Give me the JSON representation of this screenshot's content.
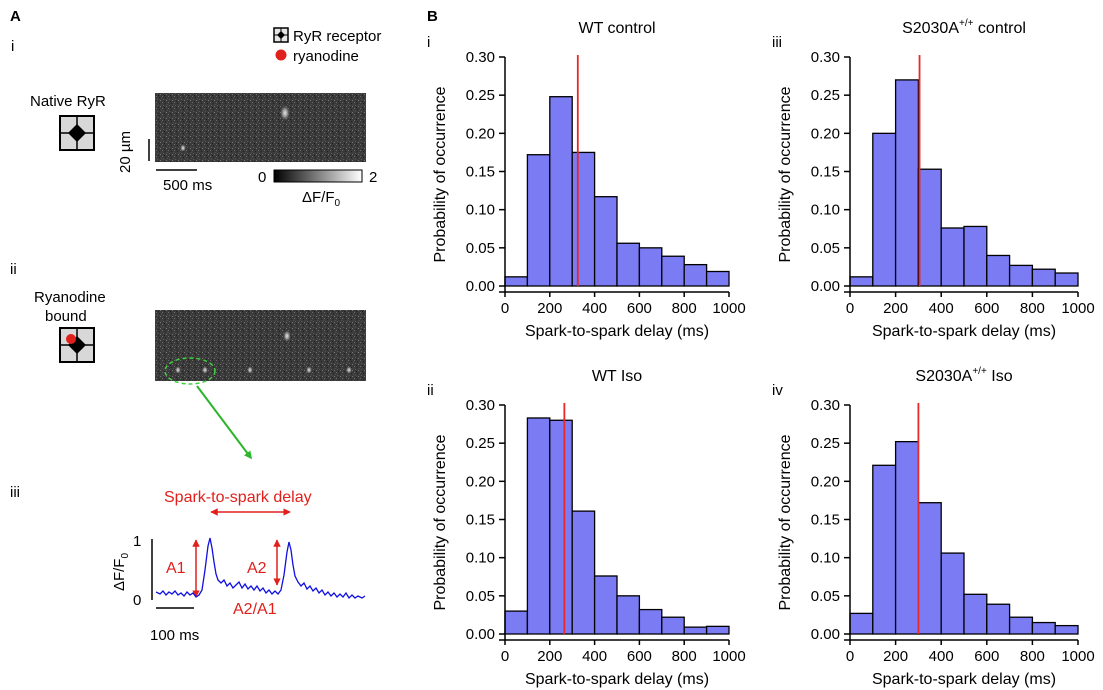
{
  "panel_a": {
    "letter": "A",
    "sub_i": "i",
    "sub_ii": "ii",
    "sub_iii": "iii",
    "legend": {
      "receptor": "RyR receptor",
      "ryanodine": "ryanodine"
    },
    "native_label": "Native RyR",
    "bound_label_1": "Ryanodine",
    "bound_label_2": "bound",
    "scale_um": "20 µm",
    "scale_ms": "500 ms",
    "colorbar": {
      "min": "0",
      "max": "2",
      "label": "ΔF/F",
      "label_sub": "0"
    },
    "trace": {
      "delay_label": "Spark-to-spark delay",
      "a1": "A1",
      "a2": "A2",
      "ratio": "A2/A1",
      "y_top": "1",
      "y_bottom": "0",
      "ylabel": "ΔF/F",
      "ylabel_sub": "0",
      "scale_ms": "100 ms"
    },
    "colors": {
      "trace": "#1010e0",
      "annotation": "#e0201b",
      "arrow": "#2db52d",
      "highlight": "#3fd13f"
    }
  },
  "panel_b": {
    "letter": "B"
  },
  "chart_data": [
    {
      "id": "i",
      "type": "bar",
      "title": "WT control",
      "title_sup": "",
      "title_suffix": "",
      "xlabel": "Spark-to-spark delay (ms)",
      "ylabel": "Probability of occurrence",
      "bin_edges": [
        0,
        100,
        200,
        300,
        400,
        500,
        600,
        700,
        800,
        900,
        1000
      ],
      "values": [
        0.012,
        0.172,
        0.248,
        0.175,
        0.117,
        0.056,
        0.05,
        0.039,
        0.028,
        0.019
      ],
      "mean_line": 325,
      "xlim": [
        0,
        1000
      ],
      "ylim": [
        0,
        0.3
      ],
      "xticks": [
        "0",
        "200",
        "400",
        "600",
        "800",
        "1000"
      ],
      "yticks": [
        "0.00",
        "0.05",
        "0.10",
        "0.15",
        "0.20",
        "0.25",
        "0.30"
      ],
      "bar_color": "#7b7bf4",
      "line_color": "#e8282a"
    },
    {
      "id": "iii",
      "type": "bar",
      "title": "S2030A",
      "title_sup": "+/+",
      "title_suffix": " control",
      "xlabel": "Spark-to-spark delay (ms)",
      "ylabel": "Probability of occurrence",
      "bin_edges": [
        0,
        100,
        200,
        300,
        400,
        500,
        600,
        700,
        800,
        900,
        1000
      ],
      "values": [
        0.012,
        0.2,
        0.27,
        0.153,
        0.076,
        0.078,
        0.04,
        0.027,
        0.022,
        0.017
      ],
      "mean_line": 305,
      "xlim": [
        0,
        1000
      ],
      "ylim": [
        0,
        0.3
      ],
      "xticks": [
        "0",
        "200",
        "400",
        "600",
        "800",
        "1000"
      ],
      "yticks": [
        "0.00",
        "0.05",
        "0.10",
        "0.15",
        "0.20",
        "0.25",
        "0.30"
      ],
      "bar_color": "#7b7bf4",
      "line_color": "#e8282a"
    },
    {
      "id": "ii",
      "type": "bar",
      "title": "WT Iso",
      "title_sup": "",
      "title_suffix": "",
      "xlabel": "Spark-to-spark delay (ms)",
      "ylabel": "Probability of occurrence",
      "bin_edges": [
        0,
        100,
        200,
        300,
        400,
        500,
        600,
        700,
        800,
        900,
        1000
      ],
      "values": [
        0.03,
        0.283,
        0.28,
        0.161,
        0.076,
        0.05,
        0.032,
        0.022,
        0.009,
        0.01
      ],
      "mean_line": 265,
      "xlim": [
        0,
        1000
      ],
      "ylim": [
        0,
        0.3
      ],
      "xticks": [
        "0",
        "200",
        "400",
        "600",
        "800",
        "1000"
      ],
      "yticks": [
        "0.00",
        "0.05",
        "0.10",
        "0.15",
        "0.20",
        "0.25",
        "0.30"
      ],
      "bar_color": "#7b7bf4",
      "line_color": "#e8282a"
    },
    {
      "id": "iv",
      "type": "bar",
      "title": "S2030A",
      "title_sup": "+/+",
      "title_suffix": " Iso",
      "xlabel": "Spark-to-spark delay (ms)",
      "ylabel": "Probability of occurrence",
      "bin_edges": [
        0,
        100,
        200,
        300,
        400,
        500,
        600,
        700,
        800,
        900,
        1000
      ],
      "values": [
        0.027,
        0.221,
        0.252,
        0.172,
        0.106,
        0.052,
        0.039,
        0.022,
        0.015,
        0.011
      ],
      "mean_line": 300,
      "xlim": [
        0,
        1000
      ],
      "ylim": [
        0,
        0.3
      ],
      "xticks": [
        "0",
        "200",
        "400",
        "600",
        "800",
        "1000"
      ],
      "yticks": [
        "0.00",
        "0.05",
        "0.10",
        "0.15",
        "0.20",
        "0.25",
        "0.30"
      ],
      "bar_color": "#7b7bf4",
      "line_color": "#e8282a"
    }
  ]
}
